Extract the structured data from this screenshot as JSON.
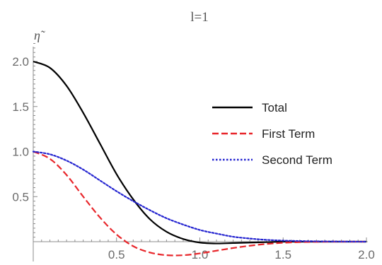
{
  "chart_data": {
    "type": "line",
    "title": "l=1",
    "xlabel": "",
    "ylabel": "η̃",
    "xlim": [
      0.0,
      2.0
    ],
    "ylim": [
      0.0,
      2.0
    ],
    "x_ticks": [
      0.5,
      1.0,
      1.5,
      2.0
    ],
    "x_tick_labels": [
      "0.5",
      "1.0",
      "1.5",
      "2.0"
    ],
    "y_ticks": [
      0.5,
      1.0,
      1.5,
      2.0
    ],
    "y_tick_labels": [
      "0.5",
      "1.0",
      "1.5",
      "2.0"
    ],
    "legend_position": "right",
    "grid": false,
    "x": [
      0.0,
      0.1,
      0.2,
      0.3,
      0.4,
      0.5,
      0.6,
      0.7,
      0.8,
      0.9,
      1.0,
      1.1,
      1.2,
      1.3,
      1.4,
      1.5,
      1.6,
      1.7,
      1.8,
      1.9,
      2.0
    ],
    "series": [
      {
        "name": "Total",
        "color": "#000000",
        "dash": "solid",
        "values": [
          2.0,
          1.93,
          1.73,
          1.43,
          1.09,
          0.75,
          0.47,
          0.25,
          0.11,
          0.03,
          -0.01,
          -0.02,
          -0.015,
          -0.01,
          -0.005,
          0.0,
          0.0,
          0.0,
          0.0,
          0.0,
          0.0
        ]
      },
      {
        "name": "First Term",
        "color": "#e8262b",
        "dash": "dashed",
        "values": [
          1.0,
          0.92,
          0.74,
          0.5,
          0.27,
          0.08,
          -0.05,
          -0.12,
          -0.15,
          -0.15,
          -0.13,
          -0.1,
          -0.07,
          -0.045,
          -0.025,
          -0.012,
          -0.005,
          -0.002,
          0.0,
          0.0,
          0.0
        ]
      },
      {
        "name": "Second Term",
        "color": "#2323d0",
        "dash": "dotted",
        "values": [
          1.0,
          0.97,
          0.9,
          0.8,
          0.68,
          0.56,
          0.45,
          0.35,
          0.26,
          0.19,
          0.13,
          0.09,
          0.055,
          0.035,
          0.02,
          0.012,
          0.007,
          0.004,
          0.002,
          0.001,
          0.0
        ]
      }
    ]
  }
}
